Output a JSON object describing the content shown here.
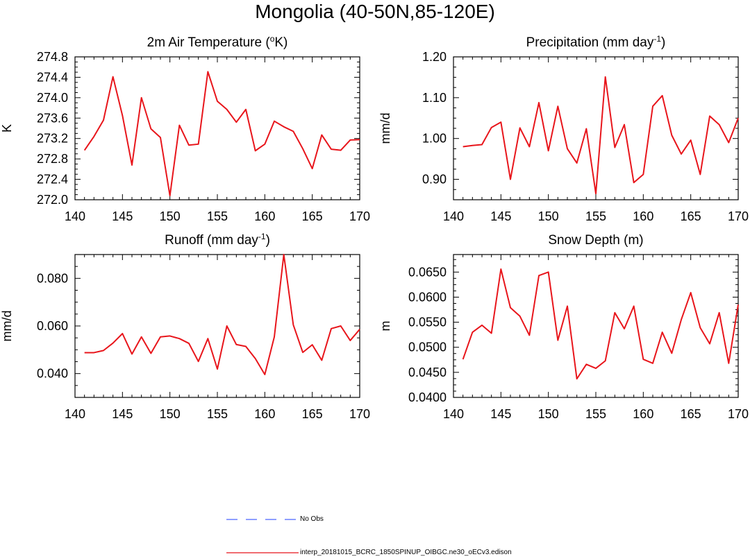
{
  "page": {
    "title": "Mongolia (40-50N,85-120E)"
  },
  "legend": {
    "items": [
      {
        "label": "No Obs",
        "color": "#4a64ff",
        "dashed": true
      },
      {
        "label": "interp_20181015_BCRC_1850SPINUP_OIBGC.ne30_oECv3.edison",
        "color": "#e8151b",
        "dashed": false
      }
    ]
  },
  "chart_data": [
    {
      "id": "temperature",
      "type": "line",
      "title": "2m Air Temperature (",
      "title_sup": "o",
      "title_post": "K)",
      "ylabel": "K",
      "xlabel": "",
      "xlim": [
        140,
        170
      ],
      "ylim": [
        272.0,
        274.8
      ],
      "xticks": [
        140,
        145,
        150,
        155,
        160,
        165,
        170
      ],
      "yticks": [
        "272.0",
        "272.4",
        "272.8",
        "273.2",
        "273.6",
        "274.0",
        "274.4",
        "274.8"
      ],
      "series": [
        {
          "name": "interp_20181015_BCRC_1850SPINUP_OIBGC.ne30_oECv3.edison",
          "color": "#e8151b",
          "x": [
            141,
            142,
            143,
            144,
            145,
            146,
            147,
            148,
            149,
            150,
            151,
            152,
            153,
            154,
            155,
            156,
            157,
            158,
            159,
            160,
            161,
            162,
            163,
            164,
            165,
            166,
            167,
            168,
            169,
            170
          ],
          "values": [
            272.97,
            273.24,
            273.56,
            274.41,
            273.65,
            272.68,
            274.0,
            273.39,
            273.22,
            272.08,
            273.46,
            273.07,
            273.09,
            274.51,
            273.93,
            273.77,
            273.52,
            273.77,
            272.96,
            273.09,
            273.54,
            273.43,
            273.34,
            273.0,
            272.61,
            273.27,
            272.99,
            272.97,
            273.17,
            273.18
          ]
        }
      ]
    },
    {
      "id": "precipitation",
      "type": "line",
      "title": "Precipitation (mm day",
      "title_sup": "-1",
      "title_post": ")",
      "ylabel": "mm/d",
      "xlabel": "",
      "xlim": [
        140,
        170
      ],
      "ylim": [
        0.85,
        1.2
      ],
      "xticks": [
        140,
        145,
        150,
        155,
        160,
        165,
        170
      ],
      "yticks": [
        "0.90",
        "1.00",
        "1.10",
        "1.20"
      ],
      "series": [
        {
          "name": "interp_20181015_BCRC_1850SPINUP_OIBGC.ne30_oECv3.edison",
          "color": "#e8151b",
          "x": [
            141,
            142,
            143,
            144,
            145,
            146,
            147,
            148,
            149,
            150,
            151,
            152,
            153,
            154,
            155,
            156,
            157,
            158,
            159,
            160,
            161,
            162,
            163,
            164,
            165,
            166,
            167,
            168,
            169,
            170
          ],
          "values": [
            0.98,
            0.983,
            0.985,
            1.027,
            1.04,
            0.9,
            1.026,
            0.98,
            1.088,
            0.97,
            1.079,
            0.975,
            0.94,
            1.024,
            0.865,
            1.151,
            0.978,
            1.034,
            0.892,
            0.912,
            1.079,
            1.105,
            1.008,
            0.962,
            0.996,
            0.912,
            1.055,
            1.034,
            0.99,
            1.05
          ]
        }
      ]
    },
    {
      "id": "runoff",
      "type": "line",
      "title": "Runoff (mm day",
      "title_sup": "-1",
      "title_post": ")",
      "ylabel": "mm/d",
      "xlabel": "",
      "xlim": [
        140,
        170
      ],
      "ylim": [
        0.03,
        0.09
      ],
      "xticks": [
        140,
        145,
        150,
        155,
        160,
        165,
        170
      ],
      "yticks": [
        "0.040",
        "0.060",
        "0.080"
      ],
      "series": [
        {
          "name": "interp_20181015_BCRC_1850SPINUP_OIBGC.ne30_oECv3.edison",
          "color": "#e8151b",
          "x": [
            141,
            142,
            143,
            144,
            145,
            146,
            147,
            148,
            149,
            150,
            151,
            152,
            153,
            154,
            155,
            156,
            157,
            158,
            159,
            160,
            161,
            162,
            163,
            164,
            165,
            166,
            167,
            168,
            169,
            170
          ],
          "values": [
            0.0488,
            0.0488,
            0.0497,
            0.0528,
            0.0568,
            0.0482,
            0.0554,
            0.0485,
            0.0554,
            0.0558,
            0.0547,
            0.0527,
            0.0451,
            0.0547,
            0.0419,
            0.06,
            0.0522,
            0.0514,
            0.0463,
            0.0396,
            0.0554,
            0.09,
            0.0605,
            0.0489,
            0.0521,
            0.0456,
            0.0589,
            0.06,
            0.0539,
            0.0586
          ]
        }
      ]
    },
    {
      "id": "snow-depth",
      "type": "line",
      "title": "Snow Depth (m)",
      "title_sup": "",
      "title_post": "",
      "ylabel": "m",
      "xlabel": "",
      "xlim": [
        140,
        170
      ],
      "ylim": [
        0.04,
        0.0685
      ],
      "xticks": [
        140,
        145,
        150,
        155,
        160,
        165,
        170
      ],
      "yticks": [
        "0.0400",
        "0.0450",
        "0.0500",
        "0.0550",
        "0.0600",
        "0.0650"
      ],
      "series": [
        {
          "name": "interp_20181015_BCRC_1850SPINUP_OIBGC.ne30_oECv3.edison",
          "color": "#e8151b",
          "x": [
            141,
            142,
            143,
            144,
            145,
            146,
            147,
            148,
            149,
            150,
            151,
            152,
            153,
            154,
            155,
            156,
            157,
            158,
            159,
            160,
            161,
            162,
            163,
            164,
            165,
            166,
            167,
            168,
            169,
            170
          ],
          "values": [
            0.0476,
            0.053,
            0.0544,
            0.0528,
            0.0656,
            0.0579,
            0.0562,
            0.0524,
            0.0643,
            0.065,
            0.0514,
            0.0582,
            0.0437,
            0.0466,
            0.0458,
            0.0473,
            0.0569,
            0.0537,
            0.0582,
            0.0476,
            0.0468,
            0.053,
            0.0488,
            0.0555,
            0.0609,
            0.0539,
            0.0507,
            0.0569,
            0.0468,
            0.0585
          ]
        }
      ]
    }
  ]
}
